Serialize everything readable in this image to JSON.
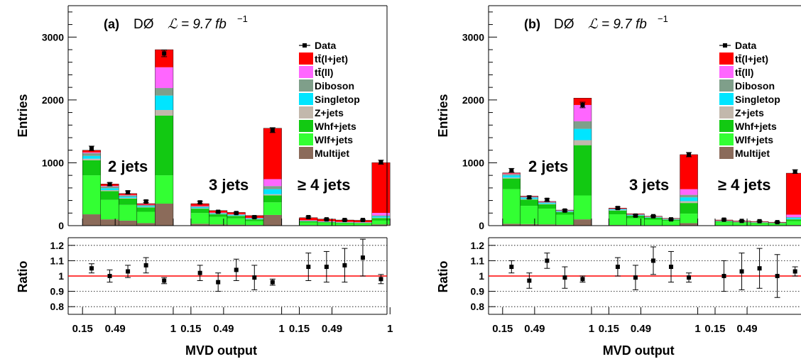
{
  "chart_data": [
    {
      "type": "bar",
      "panel_label": "(a)",
      "experiment": "DØ",
      "luminosity": "ℒ = 9.7 fb",
      "luminosity_exp": "−1",
      "ylabel": "Entries",
      "ratio_label": "Ratio",
      "xlabel": "MVD output",
      "ylim": [
        0,
        3500
      ],
      "yticks": [
        "0",
        "1000",
        "2000",
        "3000"
      ],
      "ratio_ylim": [
        0.75,
        1.25
      ],
      "ratio_yticks": [
        "0.8",
        "0.9",
        "1",
        "1.1",
        "1.2"
      ],
      "xtick_labels": [
        "0.15",
        "0.49",
        "1",
        "0.15",
        "0.49",
        "1",
        "0.15",
        "0.49",
        "1"
      ],
      "region_labels": [
        "2 jets",
        "3 jets",
        "≥ 4 jets"
      ],
      "legend": [
        {
          "name": "Data",
          "marker": "data"
        },
        {
          "name": "tt̄(l+jet)",
          "color": "#ff0000"
        },
        {
          "name": "tt̄(ll)",
          "color": "#ff66ff"
        },
        {
          "name": "Diboson",
          "color": "#7f9f8a"
        },
        {
          "name": "Singletop",
          "color": "#00e5ff"
        },
        {
          "name": "Z+jets",
          "color": "#c2b8ac"
        },
        {
          "name": "Whf+jets",
          "color": "#12c912"
        },
        {
          "name": "Wlf+jets",
          "color": "#33ff33"
        },
        {
          "name": "Multijet",
          "color": "#8b6b5a"
        }
      ],
      "bins": [
        {
          "stack": [
            180,
            620,
            240,
            25,
            45,
            45,
            10,
            35
          ],
          "data": 1230,
          "err": 35,
          "ratio": 1.05,
          "rerr": 0.03
        },
        {
          "stack": [
            100,
            310,
            140,
            15,
            30,
            30,
            8,
            30
          ],
          "data": 660,
          "err": 26,
          "ratio": 1.0,
          "rerr": 0.04
        },
        {
          "stack": [
            80,
            250,
            100,
            12,
            20,
            20,
            6,
            22
          ],
          "data": 530,
          "err": 23,
          "ratio": 1.03,
          "rerr": 0.04
        },
        {
          "stack": [
            40,
            180,
            70,
            8,
            15,
            15,
            5,
            17
          ],
          "data": 385,
          "err": 20,
          "ratio": 1.07,
          "rerr": 0.05
        },
        {
          "stack": [
            350,
            450,
            950,
            90,
            230,
            120,
            330,
            280
          ],
          "data": 2740,
          "err": 52,
          "ratio": 0.97,
          "rerr": 0.02
        },
        {
          "stack": [
            30,
            170,
            70,
            8,
            15,
            12,
            8,
            37
          ],
          "data": 370,
          "err": 19,
          "ratio": 1.02,
          "rerr": 0.05
        },
        {
          "stack": [
            20,
            120,
            40,
            5,
            10,
            8,
            5,
            32
          ],
          "data": 220,
          "err": 15,
          "ratio": 0.96,
          "rerr": 0.06
        },
        {
          "stack": [
            15,
            100,
            40,
            5,
            10,
            8,
            5,
            27
          ],
          "data": 200,
          "err": 14,
          "ratio": 1.04,
          "rerr": 0.07
        },
        {
          "stack": [
            10,
            60,
            30,
            3,
            8,
            8,
            6,
            35
          ],
          "data": 135,
          "err": 12,
          "ratio": 0.99,
          "rerr": 0.08
        },
        {
          "stack": [
            170,
            200,
            110,
            20,
            80,
            50,
            110,
            810
          ],
          "data": 1520,
          "err": 39,
          "ratio": 0.96,
          "rerr": 0.02
        },
        {
          "stack": [
            8,
            40,
            20,
            2,
            5,
            5,
            5,
            42
          ],
          "data": 135,
          "err": 12,
          "ratio": 1.06,
          "rerr": 0.09
        },
        {
          "stack": [
            5,
            35,
            15,
            2,
            4,
            4,
            5,
            35
          ],
          "data": 100,
          "err": 10,
          "ratio": 1.06,
          "rerr": 0.1
        },
        {
          "stack": [
            5,
            30,
            12,
            2,
            3,
            3,
            5,
            30
          ],
          "data": 90,
          "err": 10,
          "ratio": 1.07,
          "rerr": 0.11
        },
        {
          "stack": [
            5,
            28,
            10,
            2,
            3,
            3,
            5,
            29
          ],
          "data": 90,
          "err": 10,
          "ratio": 1.12,
          "rerr": 0.12
        },
        {
          "stack": [
            20,
            60,
            40,
            8,
            20,
            15,
            40,
            800
          ],
          "data": 1010,
          "err": 32,
          "ratio": 0.98,
          "rerr": 0.03
        }
      ]
    },
    {
      "type": "bar",
      "panel_label": "(b)",
      "experiment": "DØ",
      "luminosity": "ℒ = 9.7 fb",
      "luminosity_exp": "−1",
      "ylabel": "Entries",
      "ratio_label": "Ratio",
      "xlabel": "MVD output",
      "ylim": [
        0,
        3500
      ],
      "yticks": [
        "0",
        "1000",
        "2000",
        "3000"
      ],
      "ratio_ylim": [
        0.75,
        1.25
      ],
      "ratio_yticks": [
        "0.8",
        "0.9",
        "1",
        "1.1",
        "1.2"
      ],
      "xtick_labels": [
        "0.15",
        "0.49",
        "1",
        "0.15",
        "0.49",
        "1",
        "0.15",
        "0.49",
        "1"
      ],
      "region_labels": [
        "2 jets",
        "3 jets",
        "≥ 4 jets"
      ],
      "legend": [
        {
          "name": "Data",
          "marker": "data"
        },
        {
          "name": "tt̄(l+jet)",
          "color": "#ff0000"
        },
        {
          "name": "tt̄(ll)",
          "color": "#ff66ff"
        },
        {
          "name": "Diboson",
          "color": "#7f9f8a"
        },
        {
          "name": "Singletop",
          "color": "#00e5ff"
        },
        {
          "name": "Z+jets",
          "color": "#c2b8ac"
        },
        {
          "name": "Whf+jets",
          "color": "#12c912"
        },
        {
          "name": "Wlf+jets",
          "color": "#33ff33"
        },
        {
          "name": "Multijet",
          "color": "#8b6b5a"
        }
      ],
      "bins": [
        {
          "stack": [
            30,
            550,
            170,
            15,
            35,
            20,
            8,
            12
          ],
          "data": 880,
          "err": 30,
          "ratio": 1.06,
          "rerr": 0.04
        },
        {
          "stack": [
            25,
            290,
            100,
            10,
            20,
            12,
            5,
            8
          ],
          "data": 450,
          "err": 21,
          "ratio": 0.97,
          "rerr": 0.05
        },
        {
          "stack": [
            20,
            250,
            70,
            8,
            15,
            10,
            5,
            7
          ],
          "data": 410,
          "err": 20,
          "ratio": 1.1,
          "rerr": 0.05
        },
        {
          "stack": [
            15,
            160,
            40,
            6,
            10,
            8,
            4,
            5
          ],
          "data": 240,
          "err": 15,
          "ratio": 0.99,
          "rerr": 0.07
        },
        {
          "stack": [
            100,
            380,
            800,
            80,
            180,
            120,
            260,
            110
          ],
          "data": 1920,
          "err": 44,
          "ratio": 0.98,
          "rerr": 0.02
        },
        {
          "stack": [
            10,
            170,
            60,
            6,
            12,
            8,
            4,
            10
          ],
          "data": 280,
          "err": 17,
          "ratio": 1.06,
          "rerr": 0.06
        },
        {
          "stack": [
            8,
            110,
            40,
            4,
            8,
            6,
            4,
            8
          ],
          "data": 160,
          "err": 13,
          "ratio": 0.99,
          "rerr": 0.08
        },
        {
          "stack": [
            6,
            90,
            30,
            3,
            6,
            5,
            3,
            7
          ],
          "data": 150,
          "err": 12,
          "ratio": 1.1,
          "rerr": 0.09
        },
        {
          "stack": [
            5,
            70,
            20,
            3,
            5,
            4,
            3,
            6
          ],
          "data": 100,
          "err": 10,
          "ratio": 1.06,
          "rerr": 0.1
        },
        {
          "stack": [
            40,
            150,
            170,
            30,
            60,
            40,
            90,
            550
          ],
          "data": 1130,
          "err": 34,
          "ratio": 0.99,
          "rerr": 0.03
        },
        {
          "stack": [
            3,
            50,
            15,
            2,
            4,
            3,
            3,
            10
          ],
          "data": 95,
          "err": 10,
          "ratio": 1.0,
          "rerr": 0.1
        },
        {
          "stack": [
            3,
            40,
            12,
            2,
            3,
            2,
            3,
            9
          ],
          "data": 75,
          "err": 9,
          "ratio": 1.03,
          "rerr": 0.12
        },
        {
          "stack": [
            3,
            35,
            10,
            2,
            3,
            2,
            3,
            8
          ],
          "data": 70,
          "err": 9,
          "ratio": 1.05,
          "rerr": 0.13
        },
        {
          "stack": [
            2,
            30,
            8,
            2,
            2,
            2,
            2,
            7
          ],
          "data": 55,
          "err": 8,
          "ratio": 1.0,
          "rerr": 0.14
        },
        {
          "stack": [
            10,
            60,
            30,
            5,
            20,
            10,
            40,
            660
          ],
          "data": 860,
          "err": 29,
          "ratio": 1.03,
          "rerr": 0.03
        }
      ]
    }
  ]
}
